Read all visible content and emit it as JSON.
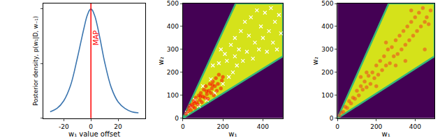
{
  "chart_data": [
    {
      "type": "line",
      "x_label": "w₁ value offset",
      "y_label": "Posterior density, p(w₁|D, w₋₁)",
      "x": [
        -30,
        -25,
        -20,
        -15,
        -10,
        -7,
        -5,
        -3,
        -1,
        0,
        1,
        3,
        5,
        7,
        10,
        15,
        20,
        25,
        30,
        35
      ],
      "values": [
        0.06,
        0.09,
        0.16,
        0.3,
        0.55,
        0.72,
        0.83,
        0.93,
        0.99,
        1.0,
        0.99,
        0.93,
        0.83,
        0.71,
        0.52,
        0.28,
        0.15,
        0.09,
        0.06,
        0.05
      ],
      "color": "#3b75af",
      "xlim": [
        -35,
        40
      ],
      "xticks": [
        -20,
        0,
        20
      ],
      "ylim": [
        0,
        1.05
      ],
      "tick_labels": "x",
      "annotations": [
        {
          "text": "MAP",
          "x": 0,
          "color": "#ff0000"
        }
      ]
    },
    {
      "type": "scatter",
      "x_label": "w₁",
      "y_label": "w₂",
      "xlim": [
        0,
        500
      ],
      "xticks": [
        0,
        200,
        400
      ],
      "ylim": [
        0,
        500
      ],
      "yticks": [
        0,
        100,
        200,
        300,
        400,
        500
      ],
      "region": {
        "x": [
          0,
          500,
          500,
          264
        ],
        "y": [
          0,
          270,
          500,
          500
        ],
        "color": "#d5e21a"
      },
      "series": [
        {
          "marker": "x",
          "color": "#ffffff",
          "x": [
            20,
            40,
            60,
            80,
            100,
            120,
            140,
            160,
            180,
            200,
            210,
            230,
            240,
            250,
            260,
            270,
            280,
            290,
            300,
            310,
            320,
            330,
            340,
            350,
            360,
            370,
            380,
            390,
            400,
            410,
            420,
            430,
            440,
            450,
            460,
            470,
            480,
            490,
            150,
            190,
            220,
            260
          ],
          "y": [
            25,
            50,
            80,
            55,
            140,
            80,
            170,
            110,
            240,
            150,
            280,
            180,
            320,
            200,
            350,
            230,
            300,
            380,
            250,
            420,
            290,
            360,
            440,
            260,
            330,
            470,
            300,
            400,
            350,
            460,
            290,
            380,
            480,
            330,
            420,
            300,
            450,
            370,
            230,
            300,
            250,
            270
          ]
        },
        {
          "marker": "circle",
          "color": "#ff0000",
          "x": [
            15,
            25,
            30,
            40,
            45,
            50,
            55,
            60,
            65,
            70,
            75,
            80,
            85,
            90,
            95,
            100,
            105,
            110,
            115,
            120,
            125,
            130,
            135,
            140,
            145,
            150,
            155,
            160,
            165,
            170,
            175,
            180,
            190,
            195,
            200,
            35,
            58,
            88,
            118,
            148
          ],
          "y": [
            20,
            30,
            45,
            35,
            60,
            50,
            75,
            45,
            90,
            70,
            60,
            100,
            80,
            110,
            70,
            95,
            125,
            90,
            140,
            105,
            85,
            120,
            150,
            110,
            130,
            160,
            100,
            140,
            175,
            120,
            150,
            190,
            130,
            165,
            180,
            55,
            65,
            95,
            118,
            145
          ]
        }
      ]
    },
    {
      "type": "scatter",
      "x_label": "w₁",
      "y_label": "w₂",
      "xlim": [
        0,
        500
      ],
      "xticks": [
        0,
        200,
        400
      ],
      "ylim": [
        0,
        500
      ],
      "yticks": [
        0,
        100,
        200,
        300,
        400,
        500
      ],
      "region": {
        "x": [
          0,
          500,
          500,
          264
        ],
        "y": [
          0,
          270,
          500,
          500
        ],
        "color": "#d5e21a"
      },
      "series": [
        {
          "marker": "circle",
          "color": "#f04020",
          "x": [
            10,
            20,
            30,
            40,
            50,
            60,
            70,
            80,
            90,
            100,
            110,
            120,
            130,
            140,
            150,
            160,
            170,
            180,
            190,
            200,
            210,
            220,
            230,
            240,
            250,
            260,
            270,
            280,
            290,
            300,
            310,
            320,
            330,
            340,
            350,
            360,
            370,
            380,
            390,
            400,
            410,
            420,
            430,
            440,
            450,
            460,
            470,
            480,
            150,
            250,
            350,
            300,
            200,
            380,
            450,
            120
          ],
          "y": [
            12,
            25,
            28,
            50,
            45,
            75,
            65,
            90,
            85,
            120,
            100,
            140,
            125,
            160,
            135,
            185,
            150,
            200,
            175,
            230,
            190,
            250,
            210,
            270,
            230,
            300,
            240,
            310,
            270,
            340,
            280,
            360,
            300,
            380,
            320,
            400,
            340,
            420,
            360,
            440,
            380,
            460,
            400,
            480,
            420,
            440,
            410,
            470,
            200,
            330,
            250,
            230,
            140,
            470,
            300,
            180
          ]
        }
      ]
    }
  ]
}
